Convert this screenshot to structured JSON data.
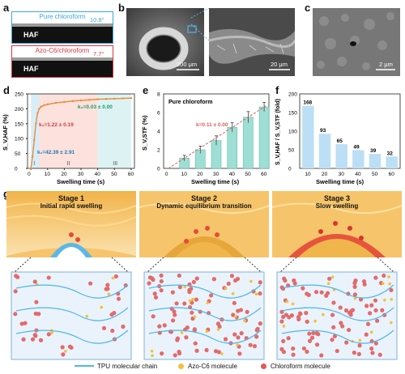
{
  "panels": {
    "a": {
      "label": "a",
      "top_box": {
        "title": "Pure chloroform",
        "angle": "10.8°",
        "substrate": "HAF",
        "color": "#3aa7d9"
      },
      "bottom_box": {
        "title": "Azo-C6/chloroform",
        "angle": "7.7°",
        "substrate": "HAF",
        "color": "#d9363e"
      }
    },
    "b": {
      "label": "b",
      "scale_left": "200 μm",
      "scale_right": "20 μm"
    },
    "c": {
      "label": "c",
      "scale": "2 μm"
    },
    "d": {
      "label": "d"
    },
    "e": {
      "label": "e"
    },
    "f": {
      "label": "f"
    },
    "g": {
      "label": "g",
      "stages": [
        {
          "name": "Stage 1",
          "desc": "Initial rapid swelling",
          "color": "#1f78b4"
        },
        {
          "name": "Stage 2",
          "desc": "Dynamic equilibrium transition",
          "color": "#d63a3a"
        },
        {
          "name": "Stage 3",
          "desc": "Slow swelling",
          "color": "#1f78b4"
        }
      ],
      "legend": [
        {
          "label": "TPU molecular chain",
          "icon": "chain-icon"
        },
        {
          "label": "Azo-C6 molecule",
          "icon": "yellow-dot-icon"
        },
        {
          "label": "Chloroform molecule",
          "icon": "red-dot-icon"
        }
      ]
    }
  },
  "chart_data": [
    {
      "panel": "d",
      "type": "line",
      "xlabel": "Swelling time (s)",
      "ylabel": "S_V,HAF (%)",
      "xlim": [
        -2,
        62
      ],
      "ylim": [
        0,
        250
      ],
      "xticks": [
        0,
        10,
        20,
        30,
        40,
        50,
        60
      ],
      "yticks": [
        0,
        50,
        100,
        150,
        200,
        250
      ],
      "x": [
        0,
        1,
        2,
        3,
        4,
        5,
        6,
        8,
        10,
        15,
        20,
        25,
        30,
        35,
        40,
        45,
        50,
        55,
        60
      ],
      "series": [
        {
          "values": [
            0,
            40,
            95,
            150,
            185,
            200,
            207,
            212,
            215,
            220,
            223,
            226,
            228,
            230,
            232,
            233,
            234,
            235,
            236
          ]
        }
      ],
      "regions": [
        {
          "label": "I",
          "from": 0,
          "to": 5,
          "color": "#cfe8f7"
        },
        {
          "label": "II",
          "from": 5,
          "to": 40,
          "color": "#fbd9d3"
        },
        {
          "label": "III",
          "from": 40,
          "to": 60,
          "color": "#d4f0f0"
        }
      ],
      "annotations": [
        {
          "text": "k₃=0.03 ± 0.00",
          "color": "#1a9a6c"
        },
        {
          "text": "k₂=1.22 ± 0.19",
          "color": "#d63a3a"
        },
        {
          "text": "k₁=42.39 ± 2.91",
          "color": "#1f78b4"
        }
      ]
    },
    {
      "panel": "e",
      "type": "bar",
      "title": "Pure chloroform",
      "xlabel": "Swelling time (s)",
      "ylabel": "S_V,STF (%)",
      "categories": [
        10,
        20,
        30,
        40,
        50,
        60
      ],
      "values": [
        1.1,
        2.0,
        3.0,
        4.4,
        5.5,
        6.6
      ],
      "errors": [
        0.3,
        0.4,
        0.5,
        0.5,
        0.6,
        0.5
      ],
      "ylim": [
        0,
        8
      ],
      "yticks": [
        0,
        2,
        4,
        6,
        8
      ],
      "xticks": [
        0,
        10,
        20,
        30,
        40,
        50,
        60
      ],
      "fit_annotation": "k=0.11 ± 0.00"
    },
    {
      "panel": "f",
      "type": "bar",
      "xlabel": "Swelling time (s)",
      "ylabel": "S_V,HAF / S_V,STF (fold)",
      "categories": [
        "10",
        "20",
        "30",
        "40",
        "50",
        "60"
      ],
      "values": [
        168,
        93,
        65,
        49,
        39,
        32
      ],
      "ylim": [
        0,
        200
      ],
      "yticks": [
        0,
        50,
        100,
        150,
        200
      ]
    }
  ]
}
